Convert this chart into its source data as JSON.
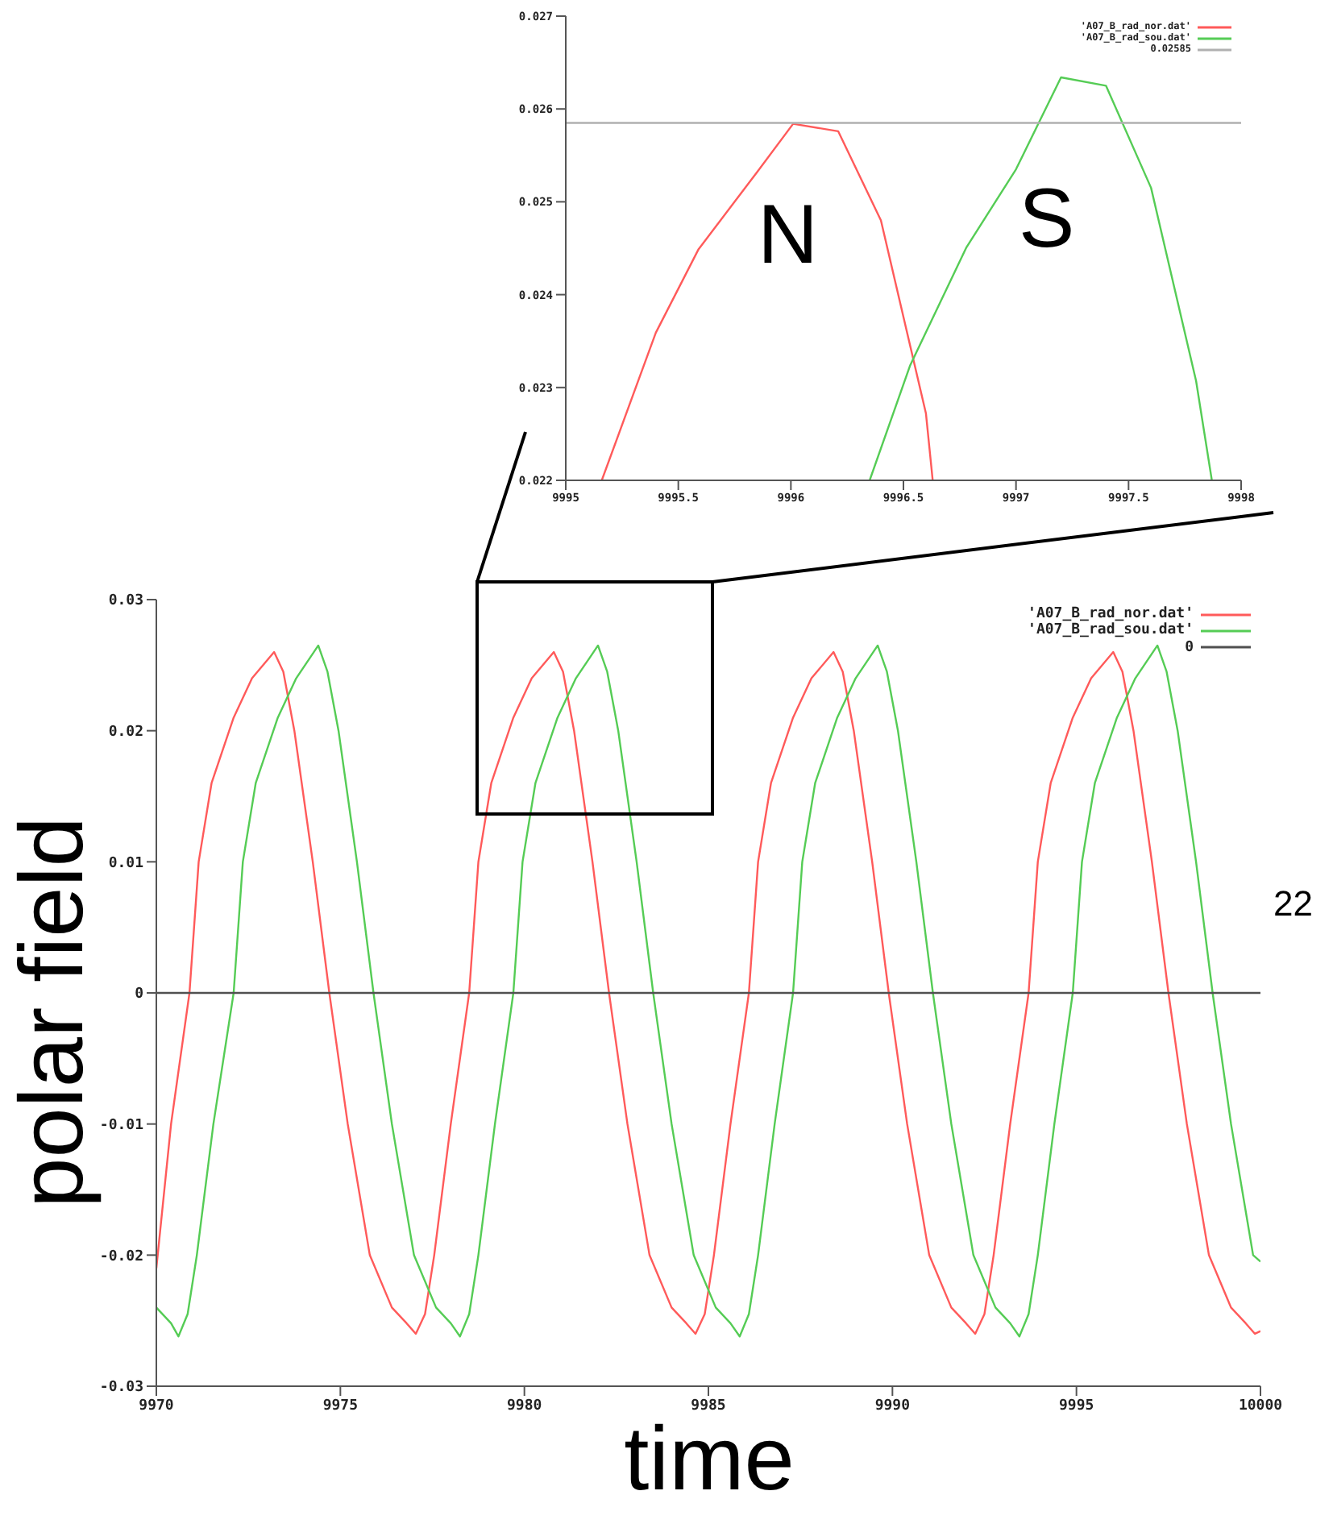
{
  "chart_data": [
    {
      "type": "line",
      "annotations": [
        "N",
        "S"
      ],
      "xlim": [
        9995,
        9998
      ],
      "xticks": [
        9995,
        9995.5,
        9996,
        9996.5,
        9997,
        9997.5,
        9998
      ],
      "ylim": [
        0.022,
        0.027
      ],
      "yticks": [
        0.022,
        0.023,
        0.024,
        0.025,
        0.026,
        0.027
      ],
      "legend": "top right",
      "series": [
        {
          "name": "'A07_B_rad_nor.dat'",
          "color": "#ff5a5a",
          "x": [
            9995.16,
            9995.4,
            9995.59,
            9995.85,
            9996.01,
            9996.21,
            9996.4,
            9996.6,
            9996.63
          ],
          "values": [
            0.022,
            0.02359,
            0.02449,
            0.02532,
            0.02584,
            0.02576,
            0.0248,
            0.02272,
            0.022
          ]
        },
        {
          "name": "'A07_B_rad_sou.dat'",
          "color": "#55cc55",
          "x": [
            9996.35,
            9996.53,
            9996.78,
            9997.0,
            9997.2,
            9997.4,
            9997.6,
            9997.8,
            9997.87
          ],
          "values": [
            0.022,
            0.02324,
            0.02451,
            0.02535,
            0.02634,
            0.02625,
            0.02515,
            0.02307,
            0.022
          ]
        },
        {
          "name": "0.02585",
          "color": "#b0b0b0",
          "x": [
            9995,
            9998
          ],
          "values": [
            0.02585,
            0.02585
          ]
        }
      ]
    },
    {
      "type": "line",
      "xlabel": "time",
      "ylabel": "polar field",
      "annotations": [
        "22"
      ],
      "xlim": [
        9970,
        10000
      ],
      "xticks": [
        9970,
        9975,
        9980,
        9985,
        9990,
        9995,
        10000
      ],
      "ylim": [
        -0.03,
        0.03
      ],
      "yticks": [
        -0.03,
        -0.02,
        -0.01,
        0,
        0.01,
        0.02,
        0.03
      ],
      "legend": "top right",
      "series": [
        {
          "name": "'A07_B_rad_nor.dat'",
          "color": "#ff5a5a",
          "x": [
            9970,
            9970.4,
            9970.9,
            9971.15,
            9971.5,
            9972.1,
            9972.6,
            9973.2,
            9973.45,
            9973.75,
            9974.25,
            9974.7,
            9975.2,
            9975.8,
            9976.4,
            9976.8,
            9977.05,
            9977.3,
            9977.55,
            9978.0,
            9978.5,
            9978.75,
            9979.1,
            9979.7,
            9980.2,
            9980.8,
            9981.05,
            9981.35,
            9981.85,
            9982.3,
            9982.8,
            9983.4,
            9984.0,
            9984.4,
            9984.65,
            9984.9,
            9985.15,
            9985.6,
            9986.1,
            9986.35,
            9986.7,
            9987.3,
            9987.8,
            9988.4,
            9988.65,
            9988.95,
            9989.45,
            9989.9,
            9990.4,
            9991.0,
            9991.6,
            9992.0,
            9992.25,
            9992.5,
            9992.75,
            9993.2,
            9993.7,
            9993.95,
            9994.3,
            9994.9,
            9995.4,
            9996.0,
            9996.25,
            9996.55,
            9997.05,
            9997.5,
            9998.0,
            9998.6,
            9999.2,
            9999.6,
            9999.85,
            10000
          ],
          "values": [
            -0.021,
            -0.01,
            0,
            0.01,
            0.016,
            0.021,
            0.024,
            0.026,
            0.0245,
            0.02,
            0.01,
            0,
            -0.01,
            -0.02,
            -0.024,
            -0.0252,
            -0.026,
            -0.0245,
            -0.02,
            -0.01,
            0,
            0.01,
            0.016,
            0.021,
            0.024,
            0.026,
            0.0245,
            0.02,
            0.01,
            0,
            -0.01,
            -0.02,
            -0.024,
            -0.0252,
            -0.026,
            -0.0245,
            -0.02,
            -0.01,
            0,
            0.01,
            0.016,
            0.021,
            0.024,
            0.026,
            0.0245,
            0.02,
            0.01,
            0,
            -0.01,
            -0.02,
            -0.024,
            -0.0252,
            -0.026,
            -0.0245,
            -0.02,
            -0.01,
            0,
            0.01,
            0.016,
            0.021,
            0.024,
            0.026,
            0.0245,
            0.02,
            0.01,
            0,
            -0.01,
            -0.02,
            -0.024,
            -0.0252,
            -0.026,
            -0.0258
          ]
        },
        {
          "name": "'A07_B_rad_sou.dat'",
          "color": "#55cc55",
          "x": [
            9970,
            9970.4,
            9970.6,
            9970.85,
            9971.1,
            9971.55,
            9972.1,
            9972.35,
            9972.7,
            9973.3,
            9973.8,
            9974.4,
            9974.65,
            9974.95,
            9975.45,
            9975.9,
            9976.4,
            9977.0,
            9977.6,
            9978.0,
            9978.25,
            9978.5,
            9978.75,
            9979.2,
            9979.7,
            9979.95,
            9980.3,
            9980.9,
            9981.4,
            9982.0,
            9982.25,
            9982.55,
            9983.05,
            9983.5,
            9984.0,
            9984.6,
            9985.2,
            9985.6,
            9985.85,
            9986.1,
            9986.35,
            9986.8,
            9987.3,
            9987.55,
            9987.9,
            9988.5,
            9989.0,
            9989.6,
            9989.85,
            9990.15,
            9990.65,
            9991.1,
            9991.6,
            9992.2,
            9992.8,
            9993.2,
            9993.45,
            9993.7,
            9993.95,
            9994.4,
            9994.9,
            9995.15,
            9995.5,
            9996.1,
            9996.6,
            9997.2,
            9997.45,
            9997.75,
            9998.25,
            9998.7,
            9999.2,
            9999.8,
            10000
          ],
          "values": [
            -0.024,
            -0.0252,
            -0.0262,
            -0.0245,
            -0.02,
            -0.01,
            0,
            0.01,
            0.016,
            0.021,
            0.024,
            0.0265,
            0.0245,
            0.02,
            0.01,
            0,
            -0.01,
            -0.02,
            -0.024,
            -0.0252,
            -0.0262,
            -0.0245,
            -0.02,
            -0.01,
            0,
            0.01,
            0.016,
            0.021,
            0.024,
            0.0265,
            0.0245,
            0.02,
            0.01,
            0,
            -0.01,
            -0.02,
            -0.024,
            -0.0252,
            -0.0262,
            -0.0245,
            -0.02,
            -0.01,
            0,
            0.01,
            0.016,
            0.021,
            0.024,
            0.0265,
            0.0245,
            0.02,
            0.01,
            0,
            -0.01,
            -0.02,
            -0.024,
            -0.0252,
            -0.0262,
            -0.0245,
            -0.02,
            -0.01,
            0,
            0.01,
            0.016,
            0.021,
            0.024,
            0.0265,
            0.0245,
            0.02,
            0.01,
            0,
            -0.01,
            -0.02,
            -0.0205
          ]
        },
        {
          "name": "0",
          "color": "#505050",
          "x": [
            9970,
            10000
          ],
          "values": [
            0,
            0
          ]
        }
      ]
    }
  ]
}
